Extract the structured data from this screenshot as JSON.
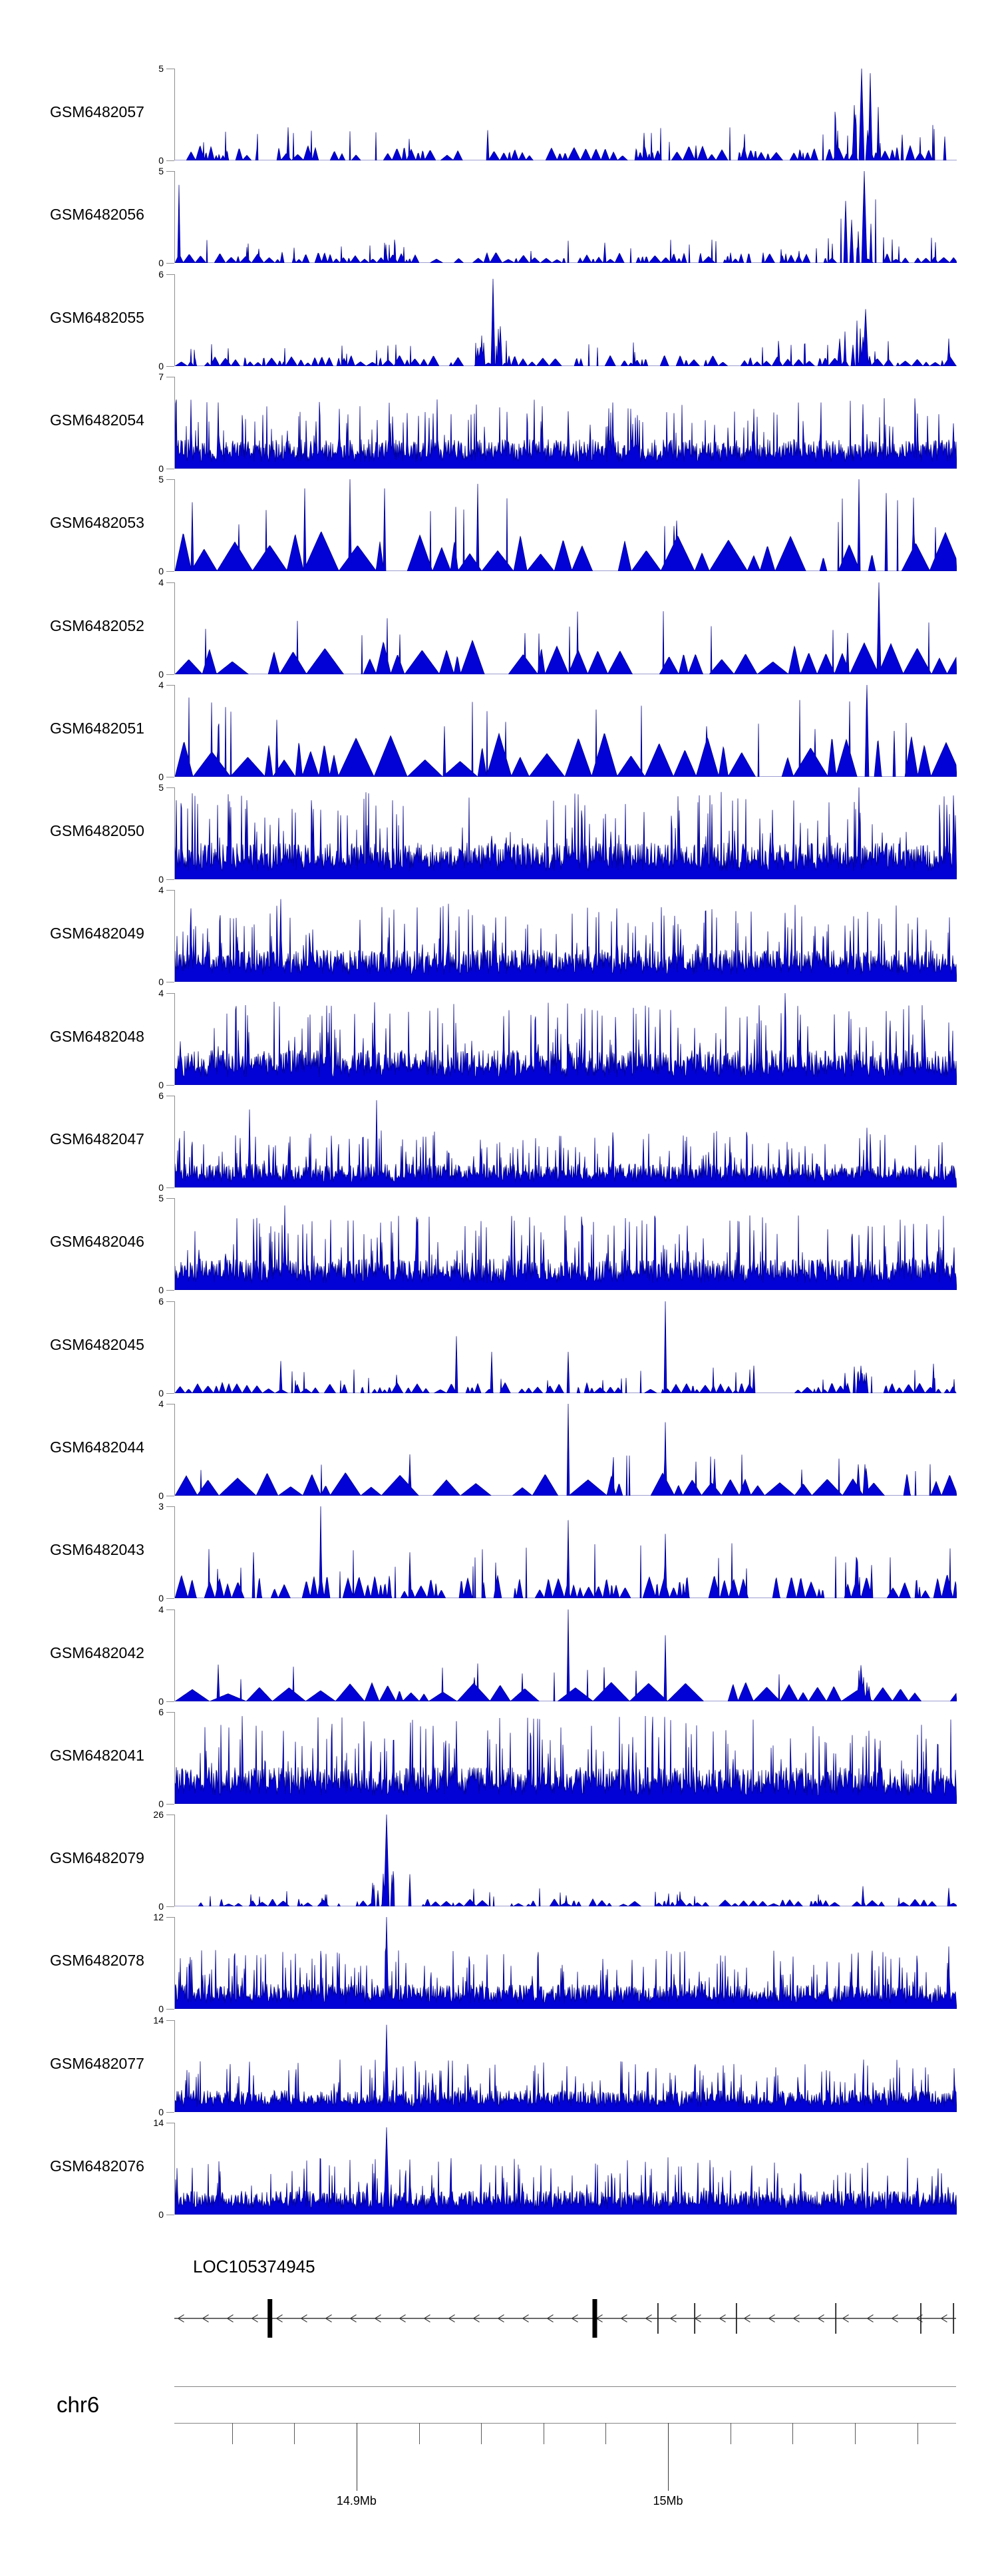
{
  "page": {
    "background": "#ffffff"
  },
  "colors": {
    "coverage_fill": "#0202d6",
    "coverage_edge": "#000087",
    "axis_gray": "#8f8f8f",
    "ruler_gray": "#858585",
    "tick_dark": "#3a3a3a",
    "text": "#000000"
  },
  "chart_data": {
    "type": "area",
    "description": "Genome browser read-coverage tracks for 21 GEO samples over human chr6 ~14.84-15.09 Mb, with gene model and coordinate ruler",
    "y_axis_zero_label": "0",
    "locus": {
      "chromosome_label": "chr6",
      "mb_left": 14.8415,
      "mb_right": 15.0925,
      "minor_tick_start_mb": 14.86,
      "minor_tick_step_mb": 0.02,
      "minor_tick_end_mb": 15.08,
      "major_ticks": [
        {
          "mb": 14.9,
          "label": "14.9Mb"
        },
        {
          "mb": 15.0,
          "label": "15Mb"
        }
      ]
    },
    "gene_track": {
      "gene_label": "LOC105374945",
      "strand": "minus",
      "arrow_direction": "left",
      "arrow_spacing_px": 37,
      "thick_exons_mb": [
        14.8722,
        14.9765
      ],
      "thin_exons_mb": [
        14.9968,
        15.0086,
        15.022,
        15.0539,
        15.0812,
        15.0917
      ]
    },
    "tracks": [
      {
        "label": "GSM6482057",
        "ymax": 5,
        "style": "sparse",
        "noise": 0.14,
        "seed": 101,
        "peaks": [
          {
            "x": 0.872,
            "h": 0.72,
            "w": 0.03,
            "cluster": 1
          },
          {
            "x": 0.878,
            "h": 1.0,
            "w": 0.006
          },
          {
            "x": 0.889,
            "h": 0.95,
            "w": 0.005
          },
          {
            "x": 0.4,
            "h": 0.33,
            "w": 0.003
          },
          {
            "x": 0.145,
            "h": 0.36,
            "w": 0.003
          },
          {
            "x": 0.6,
            "h": 0.3,
            "w": 0.003
          },
          {
            "x": 0.93,
            "h": 0.28,
            "w": 0.003
          },
          {
            "x": 0.985,
            "h": 0.26,
            "w": 0.003
          }
        ]
      },
      {
        "label": "GSM6482056",
        "ymax": 5,
        "style": "sparse",
        "noise": 0.1,
        "seed": 102,
        "peaks": [
          {
            "x": 0.005,
            "h": 0.85,
            "w": 0.004
          },
          {
            "x": 0.872,
            "h": 0.8,
            "w": 0.025,
            "cluster": 1
          },
          {
            "x": 0.882,
            "h": 1.0,
            "w": 0.006
          },
          {
            "x": 0.27,
            "h": 0.2,
            "w": 0.003
          },
          {
            "x": 0.55,
            "h": 0.22,
            "w": 0.003
          }
        ]
      },
      {
        "label": "GSM6482055",
        "ymax": 6,
        "style": "sparse",
        "noise": 0.1,
        "seed": 103,
        "peaks": [
          {
            "x": 0.407,
            "h": 0.95,
            "w": 0.005
          },
          {
            "x": 0.4,
            "h": 0.45,
            "w": 0.018,
            "cluster": 1
          },
          {
            "x": 0.87,
            "h": 0.5,
            "w": 0.02,
            "cluster": 1
          },
          {
            "x": 0.883,
            "h": 0.62,
            "w": 0.006
          },
          {
            "x": 0.99,
            "h": 0.3,
            "w": 0.004
          }
        ]
      },
      {
        "label": "GSM6482054",
        "ymax": 7,
        "style": "dense",
        "noise": 0.32,
        "seed": 104,
        "peaks": [
          {
            "x": 0.02,
            "h": 0.75,
            "w": 0.004
          },
          {
            "x": 0.055,
            "h": 0.72,
            "w": 0.004
          },
          {
            "x": 0.21,
            "h": 0.65,
            "w": 0.004
          },
          {
            "x": 0.33,
            "h": 0.6,
            "w": 0.004
          },
          {
            "x": 0.47,
            "h": 0.68,
            "w": 0.004
          },
          {
            "x": 0.56,
            "h": 0.72,
            "w": 0.004
          },
          {
            "x": 0.74,
            "h": 0.65,
            "w": 0.004
          },
          {
            "x": 0.88,
            "h": 0.7,
            "w": 0.004
          },
          {
            "x": 0.95,
            "h": 0.6,
            "w": 0.004
          }
        ]
      },
      {
        "label": "GSM6482053",
        "ymax": 5,
        "style": "triangles",
        "noise": 0.38,
        "seed": 105,
        "peaks": [
          {
            "x": 0.022,
            "h": 0.75,
            "w": 0.004
          },
          {
            "x": 0.166,
            "h": 0.9,
            "w": 0.004
          },
          {
            "x": 0.224,
            "h": 1.0,
            "w": 0.004
          },
          {
            "x": 0.268,
            "h": 0.9,
            "w": 0.004
          },
          {
            "x": 0.387,
            "h": 0.95,
            "w": 0.004
          },
          {
            "x": 0.875,
            "h": 1.0,
            "w": 0.004
          },
          {
            "x": 0.91,
            "h": 0.85,
            "w": 0.004
          },
          {
            "x": 0.945,
            "h": 0.8,
            "w": 0.004
          }
        ]
      },
      {
        "label": "GSM6482052",
        "ymax": 4,
        "style": "triangles",
        "noise": 0.33,
        "seed": 106,
        "peaks": [
          {
            "x": 0.9,
            "h": 1.0,
            "w": 0.005
          },
          {
            "x": 0.86,
            "h": 0.45,
            "w": 0.004
          }
        ]
      },
      {
        "label": "GSM6482051",
        "ymax": 4,
        "style": "triangles",
        "noise": 0.42,
        "seed": 107,
        "peaks": [
          {
            "x": 0.055,
            "h": 0.55,
            "w": 0.004
          },
          {
            "x": 0.13,
            "h": 0.62,
            "w": 0.004
          },
          {
            "x": 0.345,
            "h": 0.55,
            "w": 0.004
          },
          {
            "x": 0.68,
            "h": 0.55,
            "w": 0.004
          },
          {
            "x": 0.885,
            "h": 1.0,
            "w": 0.005
          },
          {
            "x": 0.92,
            "h": 0.5,
            "w": 0.004
          }
        ]
      },
      {
        "label": "GSM6482050",
        "ymax": 5,
        "style": "dense",
        "noise": 0.4,
        "seed": 108,
        "peaks": [
          {
            "x": 0.07,
            "h": 0.85,
            "w": 0.003
          },
          {
            "x": 0.175,
            "h": 0.7,
            "w": 0.003
          },
          {
            "x": 0.52,
            "h": 0.75,
            "w": 0.003
          },
          {
            "x": 0.645,
            "h": 0.75,
            "w": 0.003
          },
          {
            "x": 0.875,
            "h": 1.0,
            "w": 0.004
          }
        ]
      },
      {
        "label": "GSM6482049",
        "ymax": 4,
        "style": "dense",
        "noise": 0.35,
        "seed": 109,
        "peaks": [
          {
            "x": 0.02,
            "h": 0.8,
            "w": 0.003
          },
          {
            "x": 0.135,
            "h": 0.9,
            "w": 0.003
          },
          {
            "x": 0.35,
            "h": 0.85,
            "w": 0.003
          },
          {
            "x": 0.41,
            "h": 0.7,
            "w": 0.003
          },
          {
            "x": 0.565,
            "h": 0.8,
            "w": 0.003
          },
          {
            "x": 0.78,
            "h": 0.75,
            "w": 0.003
          },
          {
            "x": 0.95,
            "h": 0.7,
            "w": 0.003
          }
        ]
      },
      {
        "label": "GSM6482048",
        "ymax": 4,
        "style": "dense",
        "noise": 0.38,
        "seed": 110,
        "peaks": [
          {
            "x": 0.255,
            "h": 0.9,
            "w": 0.003
          },
          {
            "x": 0.42,
            "h": 0.75,
            "w": 0.003
          },
          {
            "x": 0.78,
            "h": 1.0,
            "w": 0.003
          },
          {
            "x": 0.915,
            "h": 0.7,
            "w": 0.003
          }
        ]
      },
      {
        "label": "GSM6482047",
        "ymax": 6,
        "style": "dense",
        "noise": 0.26,
        "seed": 111,
        "peaks": [
          {
            "x": 0.095,
            "h": 0.85,
            "w": 0.003
          },
          {
            "x": 0.258,
            "h": 0.95,
            "w": 0.003
          },
          {
            "x": 0.56,
            "h": 0.6,
            "w": 0.003
          },
          {
            "x": 0.71,
            "h": 0.55,
            "w": 0.003
          },
          {
            "x": 0.885,
            "h": 0.65,
            "w": 0.003
          }
        ]
      },
      {
        "label": "GSM6482046",
        "ymax": 5,
        "style": "dense",
        "noise": 0.34,
        "seed": 112,
        "peaks": [
          {
            "x": 0.14,
            "h": 0.92,
            "w": 0.003
          },
          {
            "x": 0.31,
            "h": 0.7,
            "w": 0.003
          },
          {
            "x": 0.5,
            "h": 0.65,
            "w": 0.003
          },
          {
            "x": 0.655,
            "h": 0.7,
            "w": 0.003
          },
          {
            "x": 0.74,
            "h": 0.65,
            "w": 0.003
          },
          {
            "x": 0.945,
            "h": 0.72,
            "w": 0.003
          }
        ]
      },
      {
        "label": "GSM6482045",
        "ymax": 6,
        "style": "sparse",
        "noise": 0.1,
        "seed": 113,
        "peaks": [
          {
            "x": 0.135,
            "h": 0.35,
            "w": 0.003
          },
          {
            "x": 0.36,
            "h": 0.62,
            "w": 0.004
          },
          {
            "x": 0.405,
            "h": 0.45,
            "w": 0.003
          },
          {
            "x": 0.503,
            "h": 0.45,
            "w": 0.003
          },
          {
            "x": 0.627,
            "h": 1.0,
            "w": 0.004
          },
          {
            "x": 0.74,
            "h": 0.3,
            "w": 0.003
          },
          {
            "x": 0.87,
            "h": 0.3,
            "w": 0.015,
            "cluster": 1
          },
          {
            "x": 0.97,
            "h": 0.32,
            "w": 0.003
          }
        ]
      },
      {
        "label": "GSM6482044",
        "ymax": 4,
        "style": "triangles",
        "noise": 0.22,
        "seed": 114,
        "peaks": [
          {
            "x": 0.3,
            "h": 0.45,
            "w": 0.003
          },
          {
            "x": 0.503,
            "h": 1.0,
            "w": 0.004
          },
          {
            "x": 0.627,
            "h": 0.8,
            "w": 0.004
          },
          {
            "x": 0.69,
            "h": 0.4,
            "w": 0.003
          },
          {
            "x": 0.88,
            "h": 0.45,
            "w": 0.01,
            "cluster": 1
          }
        ]
      },
      {
        "label": "GSM6482043",
        "ymax": 3,
        "style": "sparse",
        "noise": 0.22,
        "seed": 115,
        "peaks": [
          {
            "x": 0.1,
            "h": 0.5,
            "w": 0.003
          },
          {
            "x": 0.186,
            "h": 1.0,
            "w": 0.004
          },
          {
            "x": 0.3,
            "h": 0.5,
            "w": 0.003
          },
          {
            "x": 0.503,
            "h": 0.85,
            "w": 0.004
          },
          {
            "x": 0.627,
            "h": 0.7,
            "w": 0.003
          },
          {
            "x": 0.88,
            "h": 0.45,
            "w": 0.012,
            "cluster": 1
          }
        ]
      },
      {
        "label": "GSM6482042",
        "ymax": 4,
        "style": "triangles",
        "noise": 0.2,
        "seed": 116,
        "peaks": [
          {
            "x": 0.055,
            "h": 0.4,
            "w": 0.003
          },
          {
            "x": 0.503,
            "h": 1.0,
            "w": 0.004
          },
          {
            "x": 0.627,
            "h": 0.72,
            "w": 0.004
          },
          {
            "x": 0.88,
            "h": 0.4,
            "w": 0.008,
            "cluster": 1
          }
        ]
      },
      {
        "label": "GSM6482041",
        "ymax": 6,
        "style": "dense",
        "noise": 0.4,
        "seed": 117,
        "peaks": [
          {
            "x": 0.33,
            "h": 0.85,
            "w": 0.004
          },
          {
            "x": 0.36,
            "h": 0.9,
            "w": 0.003
          },
          {
            "x": 0.4,
            "h": 0.8,
            "w": 0.003
          },
          {
            "x": 0.47,
            "h": 0.7,
            "w": 0.003
          },
          {
            "x": 0.58,
            "h": 0.65,
            "w": 0.003
          },
          {
            "x": 0.9,
            "h": 0.6,
            "w": 0.003
          },
          {
            "x": 0.975,
            "h": 0.65,
            "w": 0.003
          }
        ]
      },
      {
        "label": "GSM6482079",
        "ymax": 26,
        "style": "sparse",
        "noise": 0.07,
        "seed": 118,
        "peaks": [
          {
            "x": 0.271,
            "h": 1.0,
            "w": 0.006
          },
          {
            "x": 0.271,
            "h": 0.4,
            "w": 0.02,
            "cluster": 1
          },
          {
            "x": 0.3,
            "h": 0.35,
            "w": 0.004
          },
          {
            "x": 0.5,
            "h": 0.12,
            "w": 0.003
          },
          {
            "x": 0.88,
            "h": 0.22,
            "w": 0.004
          },
          {
            "x": 0.99,
            "h": 0.2,
            "w": 0.003
          }
        ]
      },
      {
        "label": "GSM6482078",
        "ymax": 12,
        "style": "dense",
        "noise": 0.27,
        "seed": 119,
        "peaks": [
          {
            "x": 0.16,
            "h": 0.45,
            "w": 0.003
          },
          {
            "x": 0.271,
            "h": 1.0,
            "w": 0.005
          },
          {
            "x": 0.295,
            "h": 0.5,
            "w": 0.004
          },
          {
            "x": 0.42,
            "h": 0.4,
            "w": 0.003
          },
          {
            "x": 0.93,
            "h": 0.45,
            "w": 0.003
          },
          {
            "x": 0.99,
            "h": 0.68,
            "w": 0.004
          }
        ]
      },
      {
        "label": "GSM6482077",
        "ymax": 14,
        "style": "dense",
        "noise": 0.24,
        "seed": 120,
        "peaks": [
          {
            "x": 0.1,
            "h": 0.4,
            "w": 0.003
          },
          {
            "x": 0.271,
            "h": 0.95,
            "w": 0.005
          },
          {
            "x": 0.34,
            "h": 0.45,
            "w": 0.003
          },
          {
            "x": 0.64,
            "h": 0.4,
            "w": 0.003
          },
          {
            "x": 0.88,
            "h": 0.4,
            "w": 0.003
          }
        ]
      },
      {
        "label": "GSM6482076",
        "ymax": 14,
        "style": "dense",
        "noise": 0.26,
        "seed": 121,
        "peaks": [
          {
            "x": 0.165,
            "h": 0.5,
            "w": 0.003
          },
          {
            "x": 0.271,
            "h": 0.95,
            "w": 0.006
          },
          {
            "x": 0.3,
            "h": 0.6,
            "w": 0.004
          },
          {
            "x": 0.42,
            "h": 0.4,
            "w": 0.003
          },
          {
            "x": 0.77,
            "h": 0.35,
            "w": 0.003
          },
          {
            "x": 0.95,
            "h": 0.4,
            "w": 0.003
          }
        ]
      }
    ]
  }
}
